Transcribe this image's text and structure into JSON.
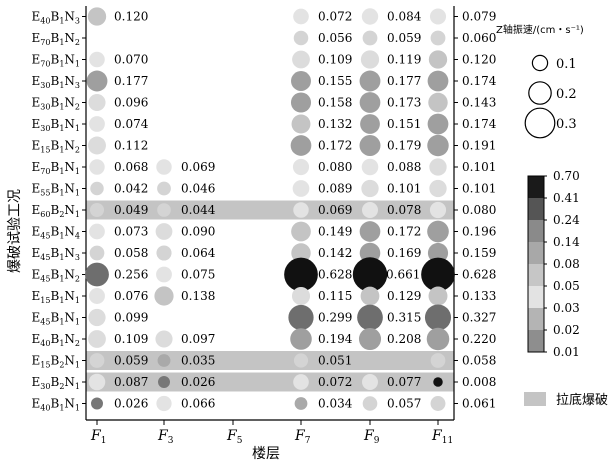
{
  "chart_data": {
    "type": "scatter",
    "title": "",
    "xlabel": "楼层",
    "ylabel": "爆破试验工况",
    "x_categories": [
      {
        "base": "F",
        "sub": "1"
      },
      {
        "base": "F",
        "sub": "3"
      },
      {
        "base": "F",
        "sub": "5"
      },
      {
        "base": "F",
        "sub": "7"
      },
      {
        "base": "F",
        "sub": "9"
      },
      {
        "base": "F",
        "sub": "11"
      }
    ],
    "rows": [
      {
        "parts": [
          [
            "E",
            "40"
          ],
          [
            "B",
            "1"
          ],
          [
            "N",
            "3"
          ]
        ],
        "values": [
          0.12,
          null,
          null,
          0.072,
          0.084,
          null
        ],
        "right": "0.079",
        "band": false
      },
      {
        "parts": [
          [
            "E",
            "70"
          ],
          [
            "B",
            "1"
          ],
          [
            "N",
            "2"
          ]
        ],
        "values": [
          null,
          null,
          null,
          0.056,
          0.059,
          null
        ],
        "right": "0.060",
        "band": false
      },
      {
        "parts": [
          [
            "E",
            "70"
          ],
          [
            "B",
            "1"
          ],
          [
            "N",
            "1"
          ]
        ],
        "values": [
          0.07,
          null,
          null,
          0.109,
          0.119,
          null
        ],
        "right": "0.120",
        "band": false
      },
      {
        "parts": [
          [
            "E",
            "30"
          ],
          [
            "B",
            "1"
          ],
          [
            "N",
            "3"
          ]
        ],
        "values": [
          0.177,
          null,
          null,
          0.155,
          0.177,
          null
        ],
        "right": "0.174",
        "band": false
      },
      {
        "parts": [
          [
            "E",
            "30"
          ],
          [
            "B",
            "1"
          ],
          [
            "N",
            "2"
          ]
        ],
        "values": [
          0.096,
          null,
          null,
          0.158,
          0.173,
          null
        ],
        "right": "0.143",
        "band": false
      },
      {
        "parts": [
          [
            "E",
            "30"
          ],
          [
            "B",
            "1"
          ],
          [
            "N",
            "1"
          ]
        ],
        "values": [
          0.074,
          null,
          null,
          0.132,
          0.151,
          null
        ],
        "right": "0.174",
        "band": false
      },
      {
        "parts": [
          [
            "E",
            "15"
          ],
          [
            "B",
            "1"
          ],
          [
            "N",
            "2"
          ]
        ],
        "values": [
          0.112,
          null,
          null,
          0.172,
          0.179,
          null
        ],
        "right": "0.191",
        "band": false
      },
      {
        "parts": [
          [
            "E",
            "70"
          ],
          [
            "B",
            "1"
          ],
          [
            "N",
            "1"
          ]
        ],
        "values": [
          0.068,
          0.069,
          null,
          0.08,
          0.088,
          null
        ],
        "right": "0.101",
        "band": false
      },
      {
        "parts": [
          [
            "E",
            "55"
          ],
          [
            "B",
            "1"
          ],
          [
            "N",
            "1"
          ]
        ],
        "values": [
          0.042,
          0.046,
          null,
          0.089,
          0.101,
          null
        ],
        "right": "0.101",
        "band": false
      },
      {
        "parts": [
          [
            "E",
            "60"
          ],
          [
            "B",
            "2"
          ],
          [
            "N",
            "1"
          ]
        ],
        "values": [
          0.049,
          0.044,
          null,
          0.069,
          0.078,
          null
        ],
        "right": "0.080",
        "band": true
      },
      {
        "parts": [
          [
            "E",
            "45"
          ],
          [
            "B",
            "1"
          ],
          [
            "N",
            "4"
          ]
        ],
        "values": [
          0.073,
          0.09,
          null,
          0.149,
          0.172,
          null
        ],
        "right": "0.196",
        "band": false
      },
      {
        "parts": [
          [
            "E",
            "45"
          ],
          [
            "B",
            "1"
          ],
          [
            "N",
            "3"
          ]
        ],
        "values": [
          0.058,
          0.064,
          null,
          0.142,
          0.169,
          null
        ],
        "right": "0.159",
        "band": false
      },
      {
        "parts": [
          [
            "E",
            "45"
          ],
          [
            "B",
            "1"
          ],
          [
            "N",
            "2"
          ]
        ],
        "values": [
          0.256,
          0.075,
          null,
          0.628,
          0.661,
          null
        ],
        "right": "0.628",
        "band": false
      },
      {
        "parts": [
          [
            "E",
            "15"
          ],
          [
            "B",
            "1"
          ],
          [
            "N",
            "1"
          ]
        ],
        "values": [
          0.076,
          0.138,
          null,
          0.115,
          0.129,
          null
        ],
        "right": "0.133",
        "band": false
      },
      {
        "parts": [
          [
            "E",
            "45"
          ],
          [
            "B",
            "1"
          ],
          [
            "N",
            "1"
          ]
        ],
        "values": [
          0.099,
          null,
          null,
          0.299,
          0.315,
          null
        ],
        "right": "0.327",
        "band": false
      },
      {
        "parts": [
          [
            "E",
            "40"
          ],
          [
            "B",
            "1"
          ],
          [
            "N",
            "2"
          ]
        ],
        "values": [
          0.109,
          0.097,
          null,
          0.194,
          0.208,
          null
        ],
        "right": "0.220",
        "band": false
      },
      {
        "parts": [
          [
            "E",
            "15"
          ],
          [
            "B",
            "2"
          ],
          [
            "N",
            "1"
          ]
        ],
        "values": [
          0.059,
          0.035,
          null,
          0.051,
          null,
          null
        ],
        "right": "0.058",
        "band": true
      },
      {
        "parts": [
          [
            "E",
            "30"
          ],
          [
            "B",
            "2"
          ],
          [
            "N",
            "1"
          ]
        ],
        "values": [
          0.087,
          0.026,
          null,
          0.072,
          0.077,
          null
        ],
        "right": "0.008",
        "band": true
      },
      {
        "parts": [
          [
            "E",
            "40"
          ],
          [
            "B",
            "1"
          ],
          [
            "N",
            "1"
          ]
        ],
        "values": [
          0.026,
          0.066,
          null,
          0.034,
          0.057,
          null
        ],
        "right": "0.061",
        "band": false
      }
    ],
    "right_col_values_are_F11": true,
    "size_legend": {
      "title": "Z轴振速/(cm・s⁻¹)",
      "values": [
        0.1,
        0.2,
        0.3
      ],
      "labels": [
        "0.1",
        "0.2",
        "0.3"
      ]
    },
    "colorbar": {
      "ticks": [
        "0.70",
        "0.41",
        "0.24",
        "0.14",
        "0.08",
        "0.05",
        "0.03",
        "0.02",
        "0.01"
      ],
      "colors": [
        "#1a1a1a",
        "#555555",
        "#8a8a8a",
        "#a8a8a8",
        "#c6c6c6",
        "#e3e3e3",
        "#b4b4b4",
        "#8e8e8e",
        "#5a5a5a"
      ]
    },
    "band_legend": {
      "label": "拉底爆破",
      "color": "#c4c4c4"
    },
    "grid": false
  }
}
